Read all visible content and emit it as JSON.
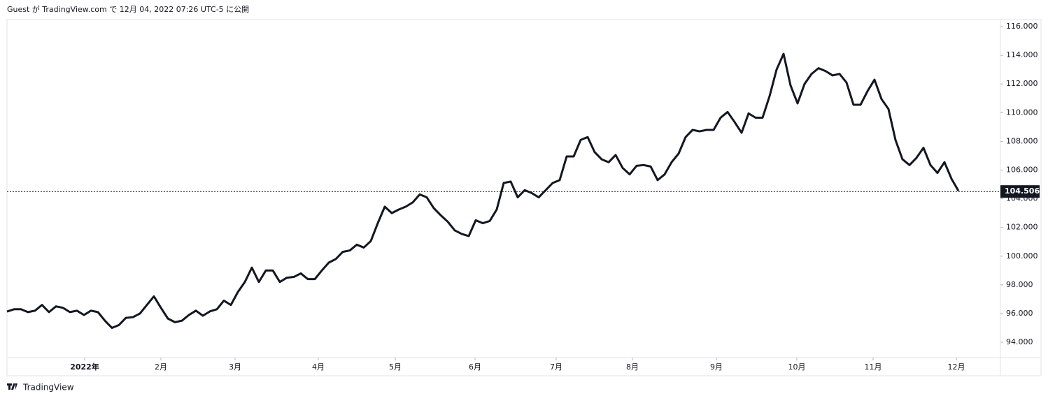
{
  "header": "Guest が TradingView.com で 12月 04, 2022 07:26 UTC-5 に公開",
  "footer": "TradingView",
  "chart_data": {
    "type": "line",
    "series": [
      {
        "color": "#131722",
        "values": [
          96.14,
          96.3,
          96.3,
          96.1,
          96.2,
          96.6,
          96.1,
          96.5,
          96.4,
          96.1,
          96.2,
          95.9,
          96.2,
          96.1,
          95.5,
          95.0,
          95.2,
          95.7,
          95.75,
          96.0,
          96.6,
          97.2,
          96.4,
          95.65,
          95.4,
          95.5,
          95.9,
          96.2,
          95.85,
          96.15,
          96.3,
          96.9,
          96.6,
          97.5,
          98.2,
          99.2,
          98.2,
          99.0,
          99.0,
          98.2,
          98.5,
          98.55,
          98.8,
          98.4,
          98.4,
          99.0,
          99.55,
          99.8,
          100.3,
          100.4,
          100.8,
          100.6,
          101.05,
          102.3,
          103.45,
          103.0,
          103.25,
          103.45,
          103.75,
          104.3,
          104.1,
          103.35,
          102.85,
          102.4,
          101.8,
          101.55,
          101.4,
          102.5,
          102.3,
          102.45,
          103.25,
          105.1,
          105.2,
          104.1,
          104.6,
          104.4,
          104.1,
          104.6,
          105.1,
          105.3,
          106.95,
          106.95,
          108.1,
          108.3,
          107.25,
          106.75,
          106.55,
          107.05,
          106.15,
          105.7,
          106.3,
          106.35,
          106.25,
          105.3,
          105.7,
          106.55,
          107.15,
          108.3,
          108.8,
          108.7,
          108.8,
          108.8,
          109.65,
          110.05,
          109.35,
          108.6,
          109.95,
          109.65,
          109.65,
          111.15,
          113.0,
          114.1,
          111.9,
          110.65,
          112.0,
          112.7,
          113.1,
          112.9,
          112.6,
          112.7,
          112.1,
          110.55,
          110.55,
          111.5,
          112.3,
          110.95,
          110.25,
          108.1,
          106.75,
          106.35,
          106.85,
          107.55,
          106.35,
          105.8,
          106.55,
          105.4,
          104.55
        ]
      }
    ],
    "last_value": 104.506,
    "xlim": [
      0,
      142
    ],
    "xticks": [
      {
        "value": 11.1,
        "label": "2022年"
      },
      {
        "value": 22,
        "label": "2月"
      },
      {
        "value": 32.6,
        "label": "3月"
      },
      {
        "value": 44.5,
        "label": "4月"
      },
      {
        "value": 55.5,
        "label": "5月"
      },
      {
        "value": 66.9,
        "label": "6月"
      },
      {
        "value": 78.5,
        "label": "7月"
      },
      {
        "value": 89.4,
        "label": "8月"
      },
      {
        "value": 101.4,
        "label": "9月"
      },
      {
        "value": 112.9,
        "label": "10月"
      },
      {
        "value": 123.8,
        "label": "11月"
      },
      {
        "value": 135.7,
        "label": "12月"
      }
    ],
    "ylim": [
      92.93,
      116.49
    ],
    "yticks": [
      {
        "value": 94,
        "label": "94.000"
      },
      {
        "value": 96,
        "label": "96.000"
      },
      {
        "value": 98,
        "label": "98.000"
      },
      {
        "value": 100,
        "label": "100.000"
      },
      {
        "value": 102,
        "label": "102.000"
      },
      {
        "value": 104,
        "label": "104.000"
      },
      {
        "value": 106,
        "label": "106.000"
      },
      {
        "value": 108,
        "label": "108.000"
      },
      {
        "value": 110,
        "label": "110.000"
      },
      {
        "value": 112,
        "label": "112.000"
      },
      {
        "value": 114,
        "label": "114.000"
      },
      {
        "value": 116,
        "label": "116.000"
      }
    ]
  }
}
